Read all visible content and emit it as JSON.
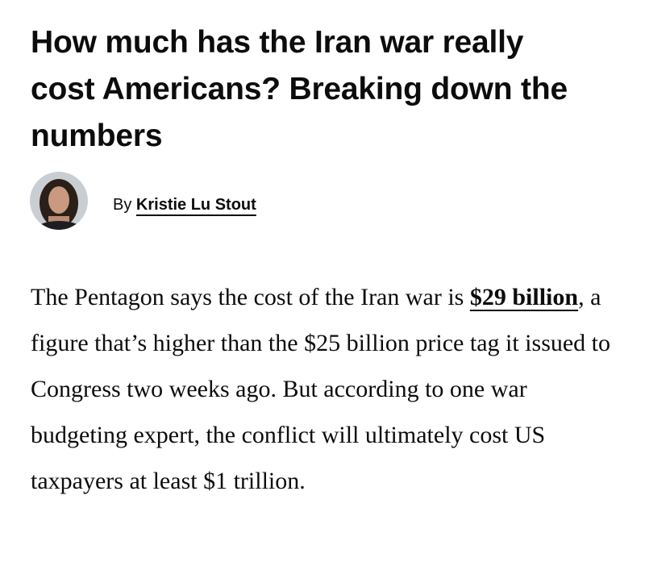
{
  "headline": "How much has the Iran war really cost Americans? Breaking down the numbers",
  "byline": {
    "prefix": "By",
    "author": "Kristie Lu Stout"
  },
  "body": {
    "text_before": "The Pentagon says the cost of the Iran war is",
    "link": "$29 billion",
    "text_after": ", a figure that’s higher than the $25 billion price tag it issued to Congress two weeks ago. But according to one war budgeting expert, the conflict will ultimately cost US taxpayers at least $1 trillion."
  }
}
